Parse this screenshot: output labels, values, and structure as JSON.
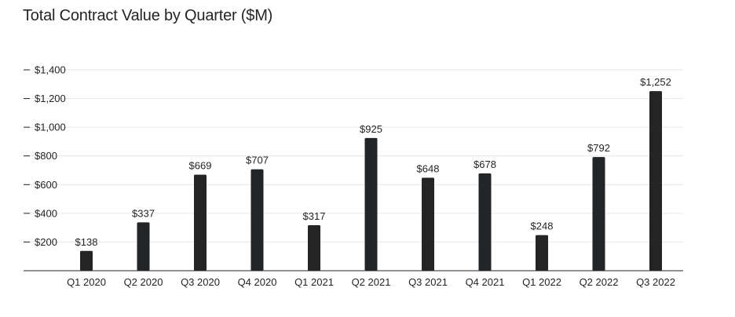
{
  "chart_data": {
    "type": "bar",
    "title": "Total Contract Value by Quarter ($M)",
    "xlabel": "",
    "ylabel": "",
    "categories": [
      "Q1 2020",
      "Q2 2020",
      "Q3 2020",
      "Q4 2020",
      "Q1 2021",
      "Q2 2021",
      "Q3 2021",
      "Q4 2021",
      "Q1 2022",
      "Q2 2022",
      "Q3 2022"
    ],
    "values": [
      138,
      337,
      669,
      707,
      317,
      925,
      648,
      678,
      248,
      792,
      1252
    ],
    "value_labels": [
      "$138",
      "$337",
      "$669",
      "$707",
      "$317",
      "$925",
      "$648",
      "$678",
      "$248",
      "$792",
      "$1,252"
    ],
    "ylim": [
      0,
      1400
    ],
    "yticks": [
      200,
      400,
      600,
      800,
      1000,
      1200,
      1400
    ],
    "ytick_labels": [
      "$200",
      "$400",
      "$600",
      "$800",
      "$1,000",
      "$1,200",
      "$1,400"
    ],
    "grid": true,
    "legend": "none",
    "colors": {
      "bar": "#222426",
      "grid": "#e6e6e6",
      "axis": "#222426",
      "text": "#222426"
    }
  }
}
